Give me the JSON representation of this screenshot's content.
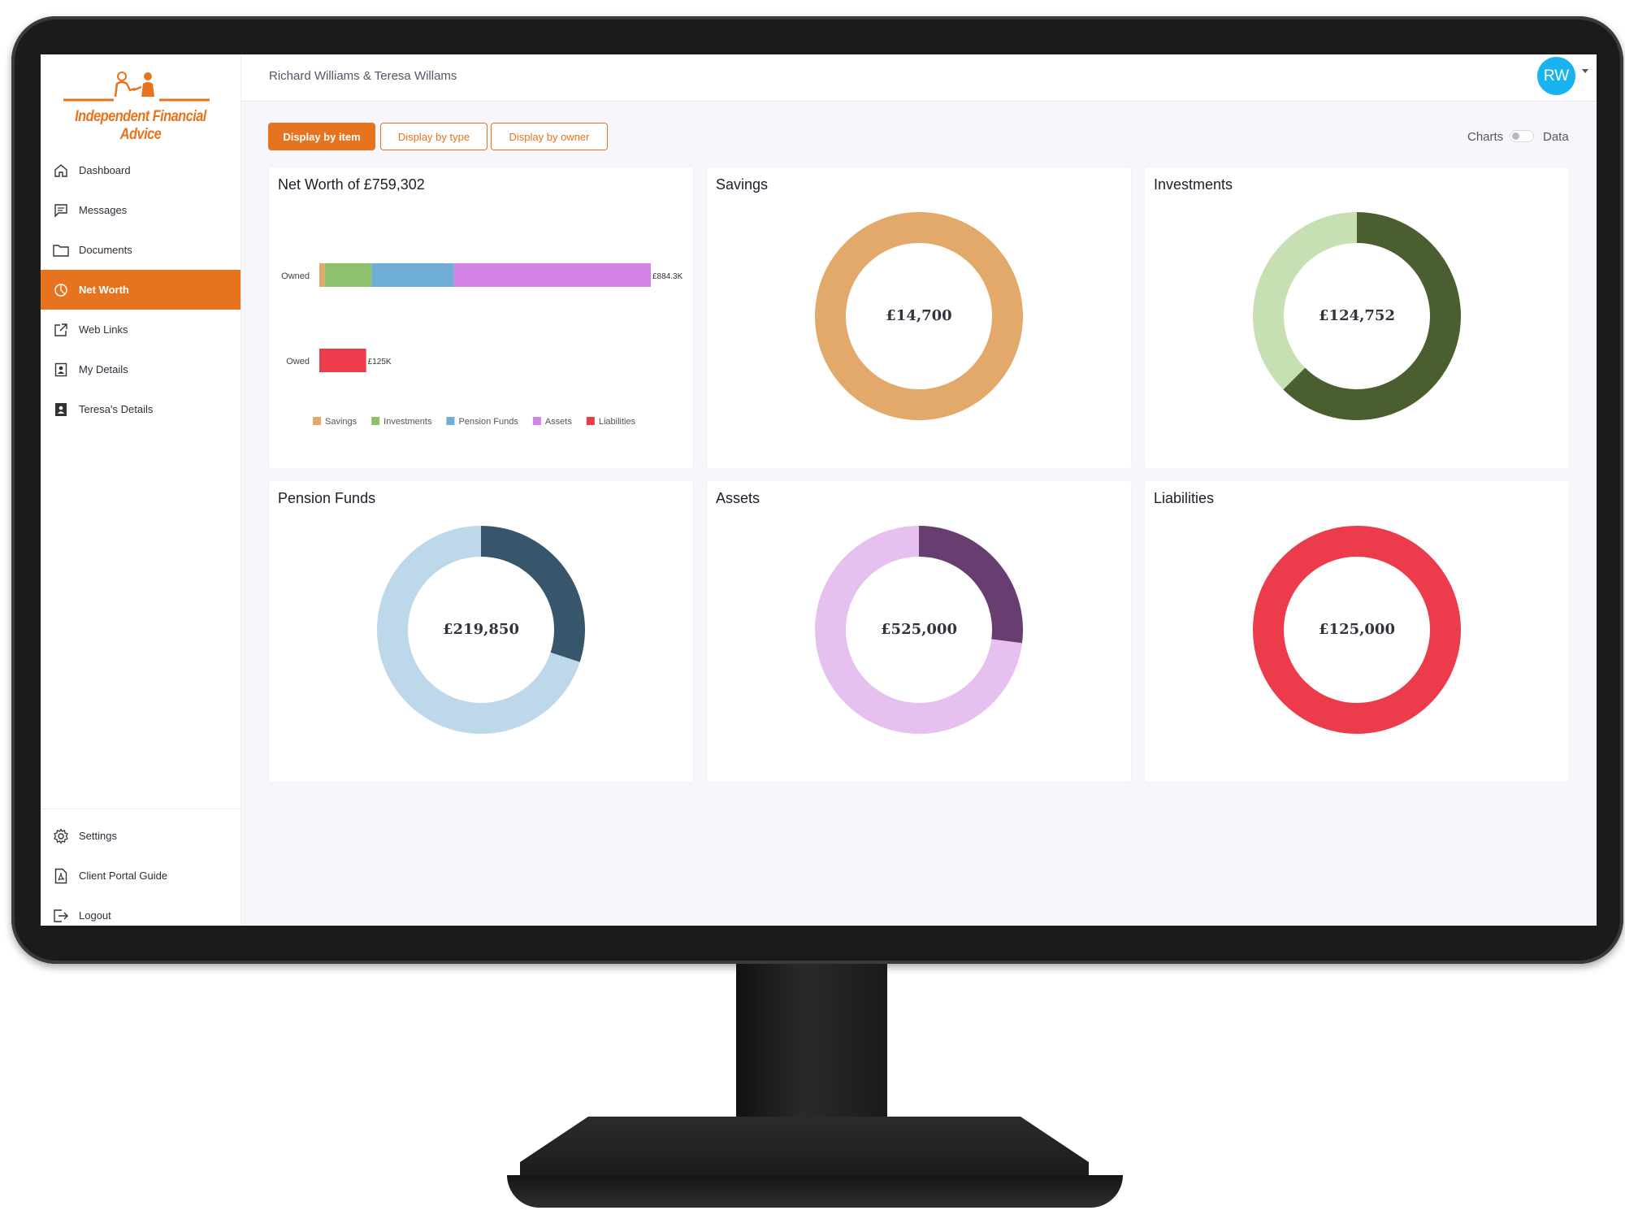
{
  "app": {
    "brand": "Independent Financial Advice",
    "client_name": "Richard Williams & Teresa Willams",
    "avatar_initials": "RW",
    "accent_color": "#e8731f"
  },
  "sidebar": {
    "items": [
      {
        "label": "Dashboard",
        "icon": "home-icon"
      },
      {
        "label": "Messages",
        "icon": "message-icon"
      },
      {
        "label": "Documents",
        "icon": "folder-icon"
      },
      {
        "label": "Net Worth",
        "icon": "pie-chart-icon",
        "active": true
      },
      {
        "label": "Web Links",
        "icon": "external-link-icon"
      },
      {
        "label": "My Details",
        "icon": "contact-card-icon"
      },
      {
        "label": "Teresa's Details",
        "icon": "contact-card-icon"
      }
    ],
    "bottom_items": [
      {
        "label": "Settings",
        "icon": "gear-icon"
      },
      {
        "label": "Client Portal Guide",
        "icon": "pdf-icon"
      },
      {
        "label": "Logout",
        "icon": "logout-icon"
      }
    ]
  },
  "toolbar": {
    "display_by_item": "Display by item",
    "display_by_type": "Display by type",
    "display_by_owner": "Display by owner",
    "toggle_left": "Charts",
    "toggle_right": "Data"
  },
  "chart_data": [
    {
      "type": "bar",
      "title": "Net Worth of £759,302",
      "orientation": "horizontal-stacked",
      "categories": [
        "Owned",
        "Owed"
      ],
      "series": [
        {
          "name": "Savings",
          "color": "#e3a96a",
          "values": [
            14700,
            0
          ]
        },
        {
          "name": "Investments",
          "color": "#8fc06c",
          "values": [
            124752,
            0
          ]
        },
        {
          "name": "Pension Funds",
          "color": "#6eaed6",
          "values": [
            219850,
            0
          ]
        },
        {
          "name": "Assets",
          "color": "#d382e6",
          "values": [
            525000,
            0
          ]
        },
        {
          "name": "Liabilities",
          "color": "#ec3b4a",
          "values": [
            0,
            125000
          ]
        }
      ],
      "data_labels": [
        "£884.3K",
        "£125K"
      ],
      "legend": "bottom"
    },
    {
      "type": "pie",
      "title": "Savings",
      "center_label": "£14,700",
      "slices": [
        {
          "value": 14700,
          "color": "#e3a96a"
        }
      ]
    },
    {
      "type": "pie",
      "title": "Investments",
      "center_label": "£124,752",
      "slices": [
        {
          "value": 78000,
          "color": "#4a5e30"
        },
        {
          "value": 46752,
          "color": "#c6e0b4"
        }
      ]
    },
    {
      "type": "pie",
      "title": "Pension Funds",
      "center_label": "£219,850",
      "slices": [
        {
          "value": 66000,
          "color": "#37566b"
        },
        {
          "value": 153850,
          "color": "#bcd8ea"
        }
      ]
    },
    {
      "type": "pie",
      "title": "Assets",
      "center_label": "£525,000",
      "slices": [
        {
          "value": 142000,
          "color": "#673e6f"
        },
        {
          "value": 383000,
          "color": "#e6c1ef"
        }
      ]
    },
    {
      "type": "pie",
      "title": "Liabilities",
      "center_label": "£125,000",
      "slices": [
        {
          "value": 125000,
          "color": "#ec3b4a"
        }
      ]
    }
  ]
}
